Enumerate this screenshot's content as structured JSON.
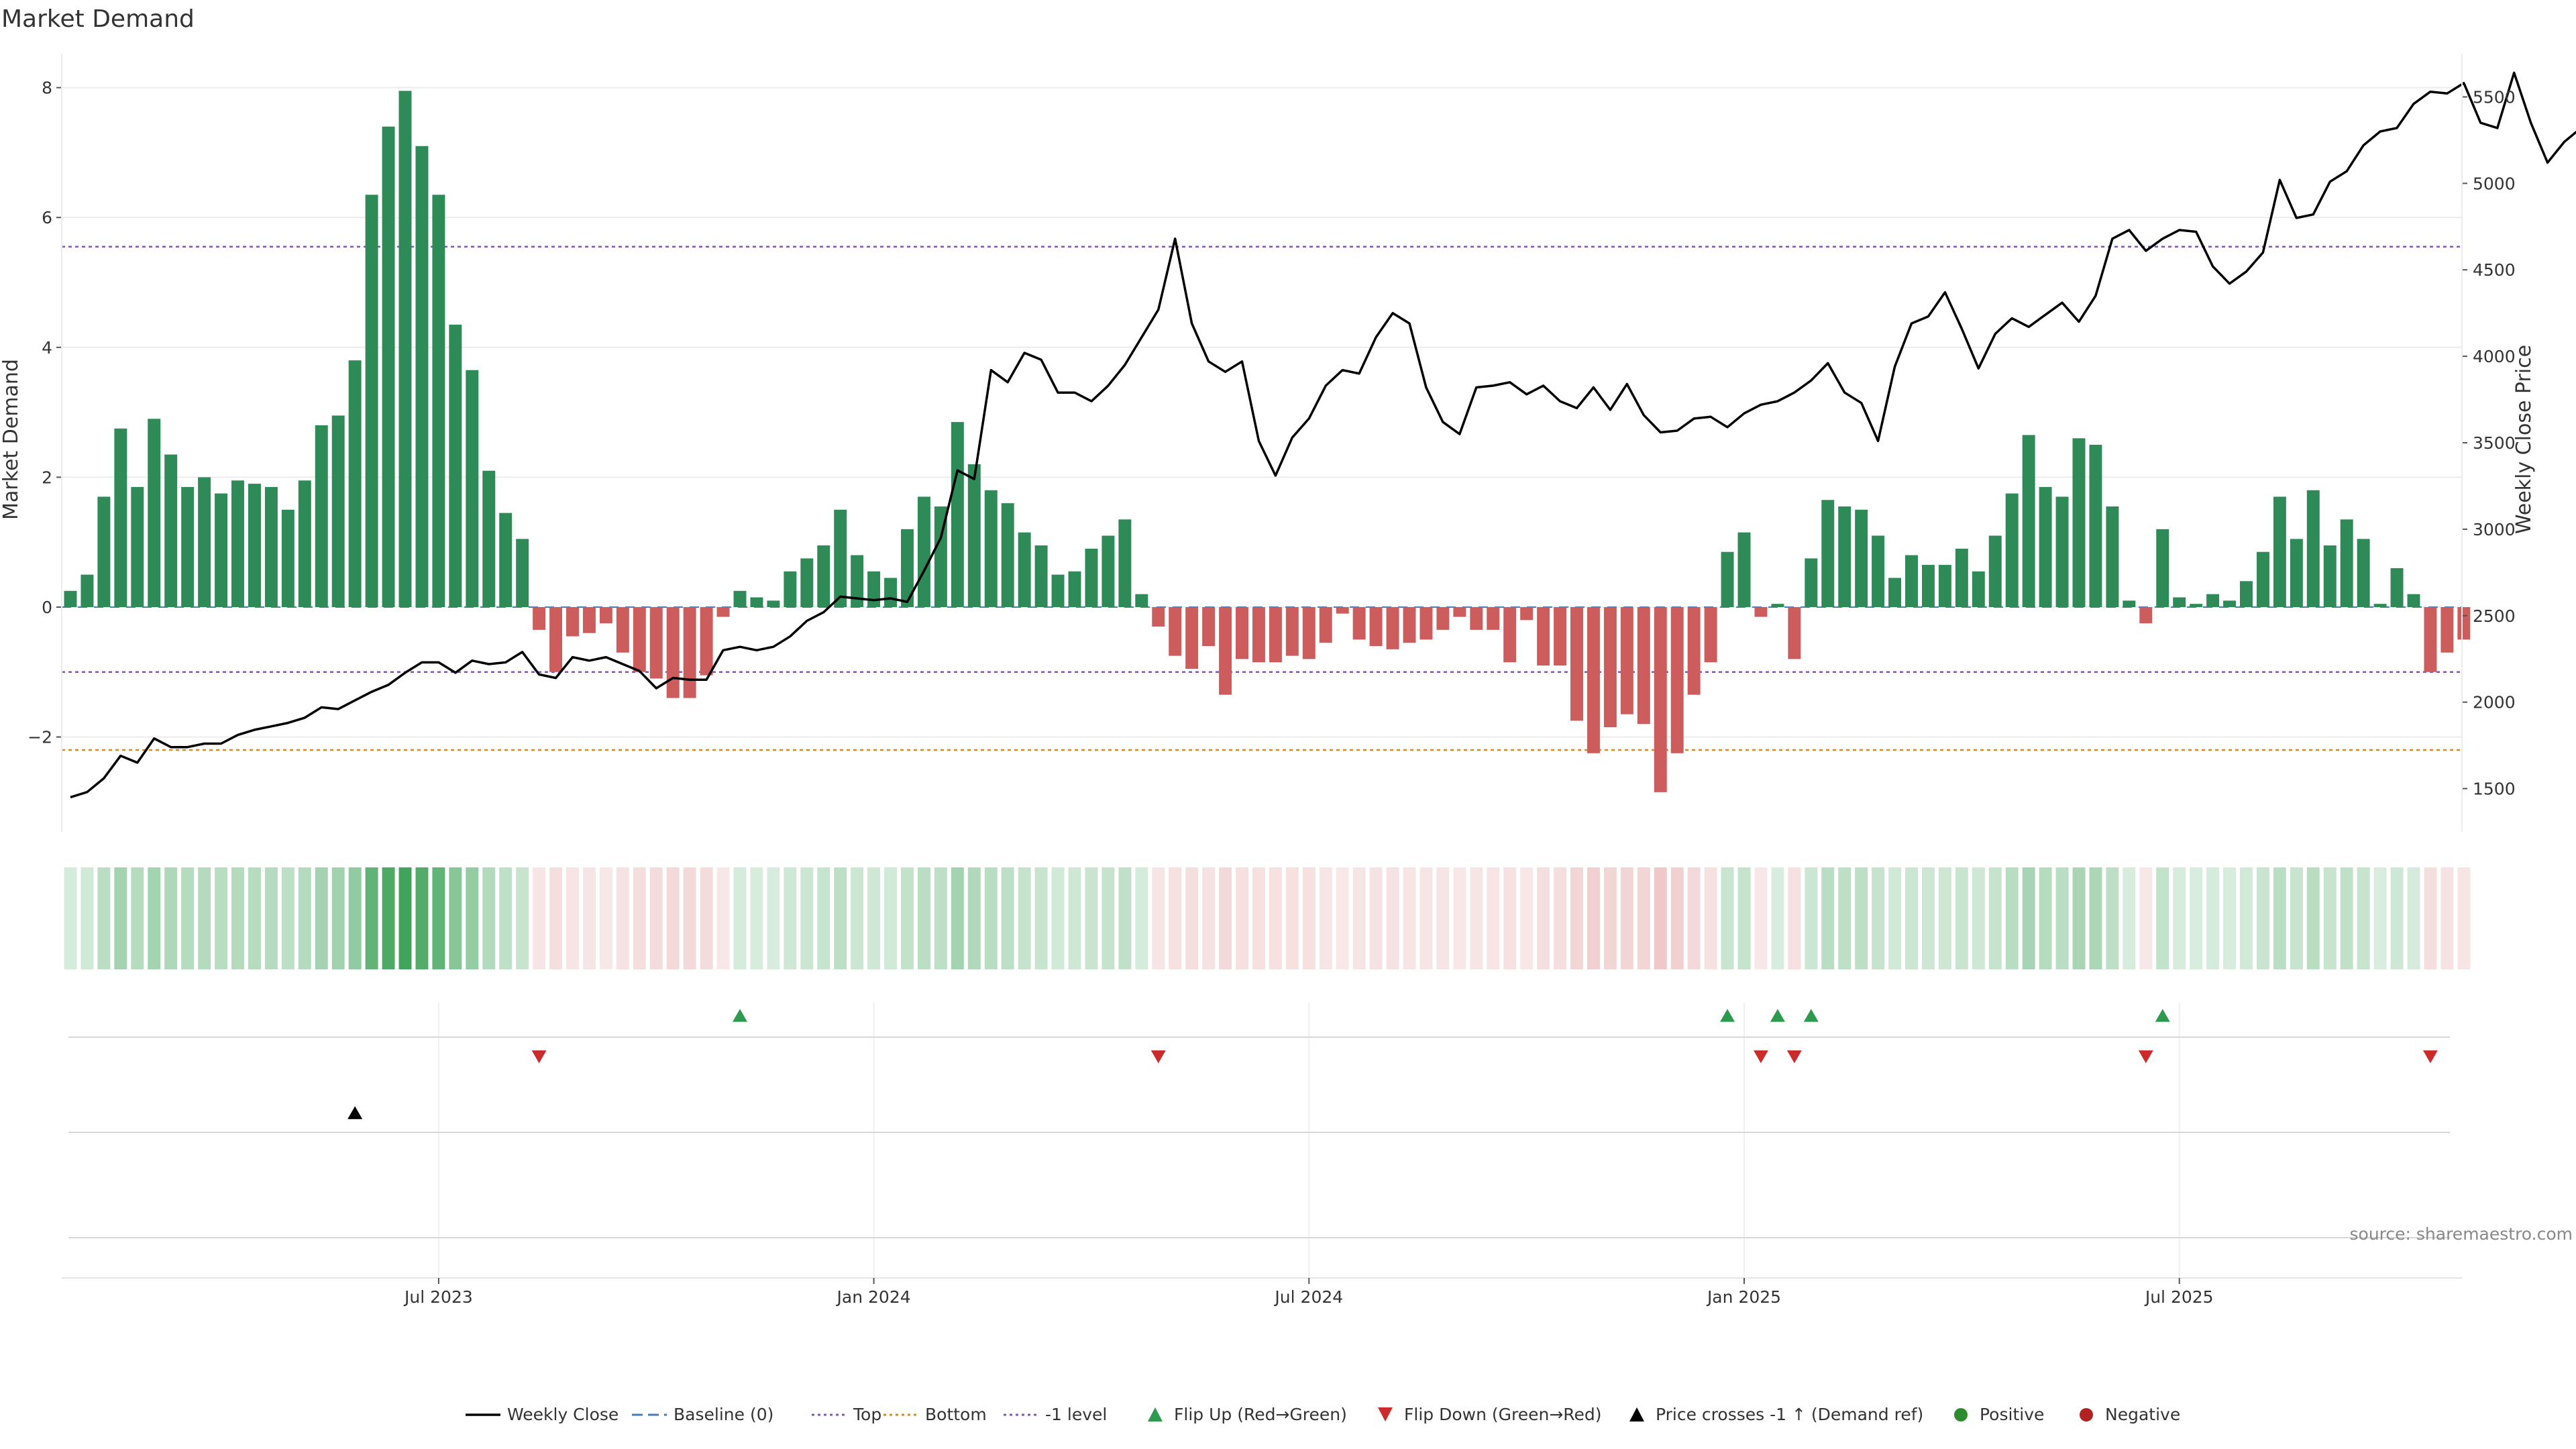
{
  "title": "Market Demand",
  "source_note": "source: sharemaestro.com",
  "chart_data": {
    "type": "bar",
    "title": "Market Demand",
    "ylabel_left": "Market Demand",
    "ylabel_right": "Weekly Close Price",
    "ylim_left": [
      -3.4,
      8.6
    ],
    "ylim_right": [
      1250,
      5750
    ],
    "yticks_left": [
      "8",
      "6",
      "4",
      "2",
      "0",
      "−2"
    ],
    "ytick_values_left": [
      8,
      6,
      4,
      2,
      0,
      -2
    ],
    "yticks_right": [
      "5500",
      "5000",
      "4500",
      "4000",
      "3500",
      "3000",
      "2500",
      "2000",
      "1500"
    ],
    "ytick_values_right": [
      5500,
      5000,
      4500,
      4000,
      3500,
      3000,
      2500,
      2000,
      1500
    ],
    "x_ticks": [
      "Jul 2023",
      "Jan 2024",
      "Jul 2024",
      "Jan 2025",
      "Jul 2025"
    ],
    "x_tick_weeks": [
      22,
      48,
      74,
      100,
      126
    ],
    "levels": {
      "top": 5.55,
      "bottom": -2.2,
      "minus1": -1.0,
      "baseline": 0
    },
    "demand": [
      0.25,
      0.5,
      1.7,
      2.75,
      1.85,
      2.9,
      2.35,
      1.85,
      2.0,
      1.75,
      1.95,
      1.9,
      1.85,
      1.5,
      1.95,
      2.8,
      2.95,
      3.8,
      6.35,
      7.4,
      7.95,
      7.1,
      6.35,
      4.35,
      3.65,
      2.1,
      1.45,
      1.05,
      -0.35,
      -1.0,
      -0.45,
      -0.4,
      -0.25,
      -0.7,
      -1.0,
      -1.1,
      -1.4,
      -1.4,
      -1.05,
      -0.15,
      0.25,
      0.15,
      0.1,
      0.55,
      0.75,
      0.95,
      1.5,
      0.8,
      0.55,
      0.45,
      1.2,
      1.7,
      1.55,
      2.85,
      2.2,
      1.8,
      1.6,
      1.15,
      0.95,
      0.5,
      0.55,
      0.9,
      1.1,
      1.35,
      0.2,
      -0.3,
      -0.75,
      -0.95,
      -0.6,
      -1.35,
      -0.8,
      -0.85,
      -0.85,
      -0.75,
      -0.8,
      -0.55,
      -0.1,
      -0.5,
      -0.6,
      -0.65,
      -0.55,
      -0.5,
      -0.35,
      -0.15,
      -0.35,
      -0.35,
      -0.85,
      -0.2,
      -0.9,
      -0.9,
      -1.75,
      -2.25,
      -1.85,
      -1.65,
      -1.8,
      -2.85,
      -2.25,
      -1.35,
      -0.85,
      0.85,
      1.15,
      -0.15,
      0.05,
      -0.8,
      0.75,
      1.65,
      1.55,
      1.5,
      1.1,
      0.45,
      0.8,
      0.65,
      0.65,
      0.9,
      0.55,
      1.1,
      1.75,
      2.65,
      1.85,
      1.7,
      2.6,
      2.5,
      1.55,
      0.1,
      -0.25,
      1.2,
      0.15,
      0.05,
      0.2,
      0.1,
      0.4,
      0.85,
      1.7,
      1.05,
      1.8,
      0.95,
      1.35,
      1.05,
      0.05,
      0.6,
      0.2,
      -1.0,
      -0.7,
      -0.5
    ],
    "weekly_close": [
      1450,
      1480,
      1560,
      1690,
      1650,
      1790,
      1740,
      1740,
      1760,
      1760,
      1810,
      1840,
      1860,
      1880,
      1910,
      1970,
      1960,
      2010,
      2060,
      2100,
      2170,
      2230,
      2230,
      2170,
      2240,
      2220,
      2230,
      2290,
      2160,
      2140,
      2260,
      2240,
      2260,
      2220,
      2180,
      2080,
      2140,
      2130,
      2130,
      2300,
      2320,
      2300,
      2320,
      2380,
      2470,
      2520,
      2610,
      2600,
      2590,
      2600,
      2580,
      2760,
      2950,
      3340,
      3290,
      3920,
      3850,
      4020,
      3980,
      3790,
      3790,
      3740,
      3830,
      3950,
      4110,
      4270,
      4680,
      4190,
      3970,
      3910,
      3970,
      3510,
      3310,
      3530,
      3640,
      3830,
      3920,
      3900,
      4110,
      4250,
      4190,
      3820,
      3620,
      3550,
      3820,
      3830,
      3850,
      3780,
      3830,
      3740,
      3700,
      3820,
      3690,
      3840,
      3660,
      3560,
      3570,
      3640,
      3650,
      3590,
      3670,
      3720,
      3740,
      3790,
      3860,
      3960,
      3790,
      3730,
      3510,
      3940,
      4190,
      4230,
      4370,
      4160,
      3930,
      4130,
      4220,
      4170,
      4240,
      4310,
      4200,
      4350,
      4680,
      4730,
      4610,
      4680,
      4730,
      4720,
      4520,
      4420,
      4490,
      4600,
      5020,
      4800,
      4820,
      5010,
      5070,
      5220,
      5300,
      5320,
      5460,
      5530,
      5520,
      5580,
      5350,
      5320,
      5640,
      5350,
      5120,
      5240,
      5320
    ]
  },
  "legend": [
    {
      "label": "Weekly Close",
      "type": "line",
      "color": "#000000"
    },
    {
      "label": "Baseline (0)",
      "type": "dashed",
      "color": "#4a7ab8"
    },
    {
      "label": "Top",
      "type": "dotted",
      "color": "#7b5ab5"
    },
    {
      "label": "Bottom",
      "type": "dotted",
      "color": "#d4882a"
    },
    {
      "label": "-1 level",
      "type": "dotted",
      "color": "#7b5ab5"
    },
    {
      "label": "Flip Up (Red→Green)",
      "type": "triangle-up",
      "color": "#2e9a4f"
    },
    {
      "label": "Flip Down (Green→Red)",
      "type": "triangle-down",
      "color": "#cc2b2b"
    },
    {
      "label": "Price crosses -1 ↑ (Demand ref)",
      "type": "triangle-up",
      "color": "#000000"
    },
    {
      "label": "Positive",
      "type": "dot",
      "color": "#2e8b2e"
    },
    {
      "label": "Negative",
      "type": "dot",
      "color": "#b22222"
    }
  ],
  "colors": {
    "positive": "#2e8b57",
    "negative": "#cd5c5c",
    "close": "#000000",
    "grid": "#ececec"
  }
}
